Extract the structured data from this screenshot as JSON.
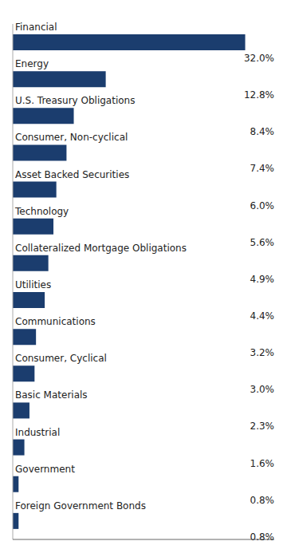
{
  "chart_data": {
    "type": "bar",
    "orientation": "horizontal",
    "categories": [
      "Financial",
      "Energy",
      "U.S. Treasury Obligations",
      "Consumer, Non-cyclical",
      "Asset Backed Securities",
      "Technology",
      "Collateralized Mortgage Obligations",
      "Utilities",
      "Communications",
      "Consumer, Cyclical",
      "Basic Materials",
      "Industrial",
      "Government",
      "Foreign Government Bonds"
    ],
    "values": [
      32.0,
      12.8,
      8.4,
      7.4,
      6.0,
      5.6,
      4.9,
      4.4,
      3.2,
      3.0,
      2.3,
      1.6,
      0.8,
      0.8
    ],
    "value_labels": [
      "32.0%",
      "12.8%",
      "8.4%",
      "7.4%",
      "6.0%",
      "5.6%",
      "4.9%",
      "4.4%",
      "3.2%",
      "3.0%",
      "2.3%",
      "1.6%",
      "0.8%",
      "0.8%"
    ],
    "color": "#1b3d6e",
    "xlim": [
      0,
      36
    ],
    "tick_labels": false,
    "data_labels": true,
    "grid": false
  }
}
